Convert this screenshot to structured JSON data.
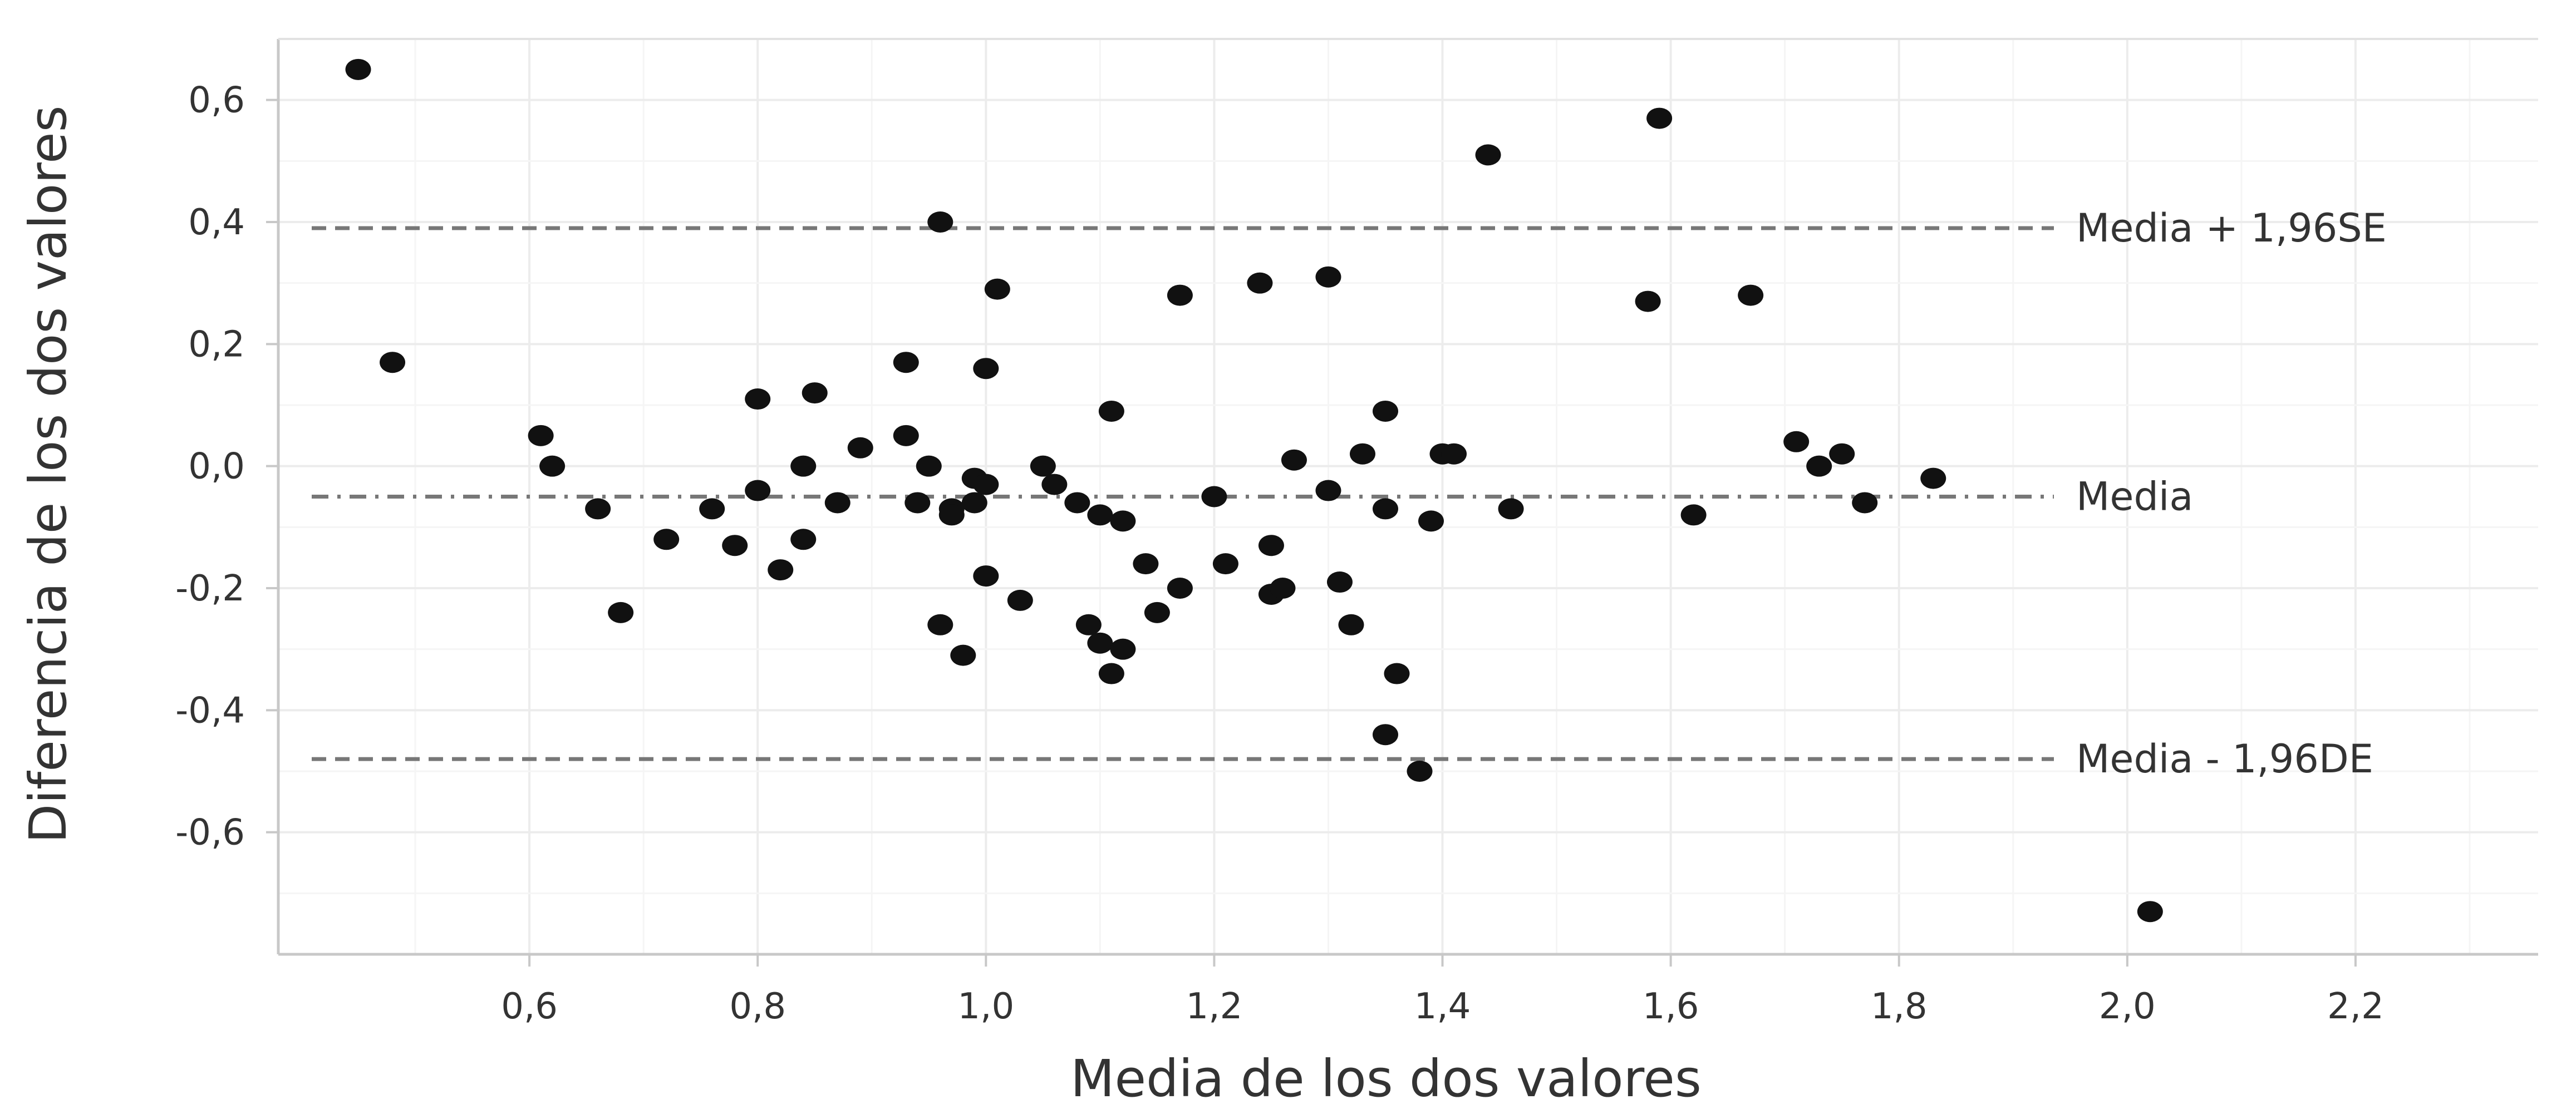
{
  "chart_data": {
    "type": "scatter",
    "title": "",
    "xlabel": "Media de los dos valores",
    "ylabel": "Diferencia de los dos valores",
    "xlim": [
      0.38,
      2.36
    ],
    "ylim": [
      -0.8,
      0.7
    ],
    "xticks": [
      0.6,
      0.8,
      1.0,
      1.2,
      1.4,
      1.6,
      1.8,
      2.0,
      2.2
    ],
    "xtick_labels": [
      "0,6",
      "0,8",
      "1,0",
      "1,2",
      "1,4",
      "1,6",
      "1,8",
      "2,0",
      "2,2"
    ],
    "yticks": [
      -0.6,
      -0.4,
      -0.2,
      0.0,
      0.2,
      0.4,
      0.6
    ],
    "ytick_labels": [
      "-0,6",
      "-0,4",
      "-0,2",
      "0,0",
      "0,2",
      "0,4",
      "0,6"
    ],
    "grid": true,
    "legend": "none",
    "reference_lines": [
      {
        "label": "Media + 1,96SE",
        "y": 0.39,
        "style": "dashed"
      },
      {
        "label": "Media",
        "y": -0.05,
        "style": "dash-dot"
      },
      {
        "label": "Media - 1,96DE",
        "y": -0.48,
        "style": "dashed"
      }
    ],
    "points": [
      [
        0.45,
        0.65
      ],
      [
        0.48,
        0.17
      ],
      [
        0.61,
        0.05
      ],
      [
        0.62,
        0.0
      ],
      [
        0.66,
        -0.07
      ],
      [
        0.68,
        -0.24
      ],
      [
        0.72,
        -0.12
      ],
      [
        0.76,
        -0.07
      ],
      [
        0.78,
        -0.13
      ],
      [
        0.8,
        0.11
      ],
      [
        0.8,
        -0.04
      ],
      [
        0.82,
        -0.17
      ],
      [
        0.84,
        0.0
      ],
      [
        0.84,
        -0.12
      ],
      [
        0.85,
        0.12
      ],
      [
        0.87,
        -0.06
      ],
      [
        0.89,
        0.03
      ],
      [
        0.93,
        0.17
      ],
      [
        0.93,
        0.05
      ],
      [
        0.94,
        -0.06
      ],
      [
        0.95,
        0.0
      ],
      [
        0.96,
        0.4
      ],
      [
        0.96,
        -0.26
      ],
      [
        0.97,
        -0.07
      ],
      [
        0.97,
        -0.08
      ],
      [
        0.98,
        -0.31
      ],
      [
        0.99,
        -0.02
      ],
      [
        0.99,
        -0.06
      ],
      [
        1.0,
        -0.03
      ],
      [
        1.0,
        0.16
      ],
      [
        1.0,
        -0.18
      ],
      [
        1.01,
        0.29
      ],
      [
        1.03,
        -0.22
      ],
      [
        1.05,
        0.0
      ],
      [
        1.06,
        -0.03
      ],
      [
        1.08,
        -0.06
      ],
      [
        1.09,
        -0.26
      ],
      [
        1.1,
        -0.29
      ],
      [
        1.1,
        -0.08
      ],
      [
        1.11,
        -0.34
      ],
      [
        1.11,
        0.09
      ],
      [
        1.12,
        -0.09
      ],
      [
        1.12,
        -0.3
      ],
      [
        1.14,
        -0.16
      ],
      [
        1.15,
        -0.24
      ],
      [
        1.17,
        -0.2
      ],
      [
        1.17,
        0.28
      ],
      [
        1.2,
        -0.05
      ],
      [
        1.21,
        -0.16
      ],
      [
        1.24,
        0.3
      ],
      [
        1.25,
        -0.13
      ],
      [
        1.25,
        -0.21
      ],
      [
        1.26,
        -0.2
      ],
      [
        1.27,
        0.01
      ],
      [
        1.3,
        0.31
      ],
      [
        1.3,
        -0.04
      ],
      [
        1.31,
        -0.19
      ],
      [
        1.32,
        -0.26
      ],
      [
        1.33,
        0.02
      ],
      [
        1.35,
        0.09
      ],
      [
        1.35,
        -0.07
      ],
      [
        1.35,
        -0.44
      ],
      [
        1.36,
        -0.34
      ],
      [
        1.38,
        -0.5
      ],
      [
        1.39,
        -0.09
      ],
      [
        1.4,
        0.02
      ],
      [
        1.41,
        0.02
      ],
      [
        1.44,
        0.51
      ],
      [
        1.46,
        -0.07
      ],
      [
        1.58,
        0.27
      ],
      [
        1.59,
        0.57
      ],
      [
        1.62,
        -0.08
      ],
      [
        1.67,
        0.28
      ],
      [
        1.71,
        0.04
      ],
      [
        1.73,
        0.0
      ],
      [
        1.75,
        0.02
      ],
      [
        1.77,
        -0.06
      ],
      [
        1.83,
        -0.02
      ],
      [
        2.02,
        -0.73
      ]
    ]
  }
}
